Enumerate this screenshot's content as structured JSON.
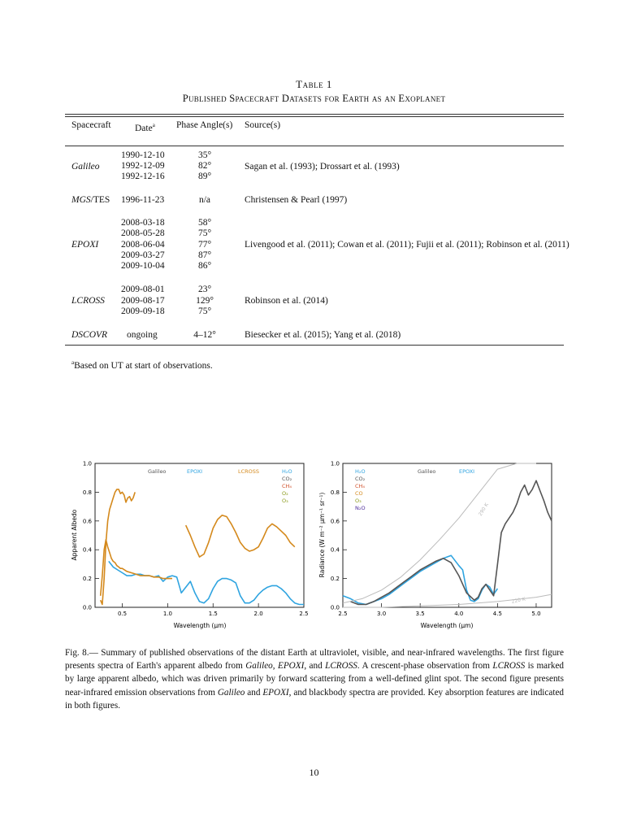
{
  "table": {
    "title": "Table 1",
    "subtitle": "Published Spacecraft Datasets for Earth as an Exoplanet",
    "headers": {
      "spacecraft": "Spacecraft",
      "date": "Date",
      "date_sup": "a",
      "phase": "Phase Angle(s)",
      "source": "Source(s)"
    },
    "groups": [
      {
        "spacecraft": "Galileo",
        "spacecraft_suffix": "",
        "dates": [
          "1990-12-10",
          "1992-12-09",
          "1992-12-16"
        ],
        "phases": [
          "35°",
          "82°",
          "89°"
        ],
        "source": "Sagan et al. (1993); Drossart et al. (1993)"
      },
      {
        "spacecraft": "MGS",
        "spacecraft_suffix": "/TES",
        "dates": [
          "1996-11-23"
        ],
        "phases": [
          "n/a"
        ],
        "source": "Christensen & Pearl (1997)"
      },
      {
        "spacecraft": "EPOXI",
        "spacecraft_suffix": "",
        "dates": [
          "2008-03-18",
          "2008-05-28",
          "2008-06-04",
          "2009-03-27",
          "2009-10-04"
        ],
        "phases": [
          "58°",
          "75°",
          "77°",
          "87°",
          "86°"
        ],
        "source": "Livengood et al. (2011); Cowan et al. (2011); Fujii et al. (2011); Robinson et al. (2011)"
      },
      {
        "spacecraft": "LCROSS",
        "spacecraft_suffix": "",
        "dates": [
          "2009-08-01",
          "2009-08-17",
          "2009-09-18"
        ],
        "phases": [
          "23°",
          "129°",
          "75°"
        ],
        "source": "Robinson et al. (2014)"
      },
      {
        "spacecraft": "DSCOVR",
        "spacecraft_suffix": "",
        "dates": [
          "ongoing"
        ],
        "phases": [
          "4–12°"
        ],
        "source": "Biesecker et al. (2015); Yang et al. (2018)"
      }
    ],
    "footnote_mark": "a",
    "footnote": "Based on UT at start of observations."
  },
  "figure": {
    "caption_label": "Fig. 8.—",
    "caption_parts": [
      " Summary of published observations of the distant Earth at ultraviolet, visible, and near-infrared wavelengths. The first figure presents spectra of Earth's apparent albedo from ",
      "Galileo",
      ", ",
      "EPOXI",
      ", and ",
      "LCROSS",
      ". A crescent-phase observation from ",
      "LCROSS",
      " is marked by large apparent albedo, which was driven primarily by forward scattering from a well-defined glint spot. The second figure presents near-infrared emission observations from ",
      "Galileo",
      " and ",
      "EPOXI",
      ", and blackbody spectra are provided. Key absorption features are indicated in both figures."
    ]
  },
  "page_number": "10",
  "chart_data": [
    {
      "type": "line",
      "xlabel": "Wavelength (µm)",
      "ylabel": "Apparent Albedo",
      "xlim": [
        0.2,
        2.5
      ],
      "ylim": [
        0.0,
        1.0
      ],
      "xticks": [
        "0.5",
        "1.0",
        "1.5",
        "2.0",
        "2.5"
      ],
      "yticks": [
        "0.0",
        "0.2",
        "0.4",
        "0.6",
        "0.8",
        "1.0"
      ],
      "grid": false,
      "legend": [
        {
          "name": "Galileo",
          "color": "#555555"
        },
        {
          "name": "EPOXI",
          "color": "#2fa4e0"
        },
        {
          "name": "LCROSS",
          "color": "#d4891c"
        }
      ],
      "absorber_labels": [
        {
          "text": "H₂O",
          "color": "#2fa4e0"
        },
        {
          "text": "CO₂",
          "color": "#555555"
        },
        {
          "text": "CH₄",
          "color": "#d0502a"
        },
        {
          "text": "O₂",
          "color": "#8a9a1a"
        },
        {
          "text": "O₃",
          "color": "#8a9a1a"
        }
      ],
      "series": [
        {
          "name": "EPOXI",
          "color": "#2fa4e0",
          "x": [
            0.35,
            0.4,
            0.45,
            0.5,
            0.55,
            0.6,
            0.65,
            0.7,
            0.75,
            0.8,
            0.85,
            0.9,
            0.95,
            1.0,
            1.05,
            1.1,
            1.15,
            1.2,
            1.25,
            1.3,
            1.35,
            1.4,
            1.45,
            1.5,
            1.55,
            1.6,
            1.65,
            1.7,
            1.75,
            1.8,
            1.85,
            1.9,
            1.95,
            2.0,
            2.05,
            2.1,
            2.15,
            2.2,
            2.25,
            2.3,
            2.35,
            2.4,
            2.45,
            2.5
          ],
          "y": [
            0.32,
            0.28,
            0.26,
            0.24,
            0.22,
            0.22,
            0.23,
            0.23,
            0.22,
            0.22,
            0.21,
            0.22,
            0.18,
            0.21,
            0.22,
            0.21,
            0.1,
            0.14,
            0.18,
            0.1,
            0.04,
            0.03,
            0.06,
            0.13,
            0.18,
            0.2,
            0.2,
            0.19,
            0.17,
            0.08,
            0.03,
            0.03,
            0.05,
            0.09,
            0.12,
            0.14,
            0.15,
            0.15,
            0.13,
            0.1,
            0.06,
            0.03,
            0.02,
            0.02
          ]
        },
        {
          "name": "LCROSS",
          "color": "#d4891c",
          "x": [
            1.2,
            1.25,
            1.3,
            1.35,
            1.4,
            1.45,
            1.5,
            1.55,
            1.6,
            1.65,
            1.7,
            1.75,
            1.8,
            1.85,
            1.9,
            1.95,
            2.0,
            2.05,
            2.1,
            2.15,
            2.2,
            2.25,
            2.3,
            2.35,
            2.4
          ],
          "y": [
            0.57,
            0.5,
            0.42,
            0.35,
            0.37,
            0.45,
            0.55,
            0.61,
            0.64,
            0.63,
            0.58,
            0.52,
            0.45,
            0.41,
            0.39,
            0.4,
            0.42,
            0.48,
            0.55,
            0.58,
            0.56,
            0.53,
            0.5,
            0.45,
            0.42
          ]
        },
        {
          "name": "LCROSS (visible)",
          "color": "#d4891c",
          "x": [
            0.26,
            0.28,
            0.3,
            0.32,
            0.34,
            0.36,
            0.38,
            0.4,
            0.42,
            0.44,
            0.46,
            0.48,
            0.5,
            0.52,
            0.54,
            0.56,
            0.58,
            0.6,
            0.62,
            0.64
          ],
          "y": [
            0.05,
            0.02,
            0.2,
            0.45,
            0.6,
            0.68,
            0.72,
            0.76,
            0.8,
            0.82,
            0.82,
            0.79,
            0.8,
            0.78,
            0.73,
            0.76,
            0.77,
            0.74,
            0.76,
            0.8
          ]
        },
        {
          "name": "LCROSS (UV–visible, low)",
          "color": "#d4891c",
          "x": [
            0.26,
            0.28,
            0.3,
            0.32,
            0.34,
            0.36,
            0.38,
            0.4,
            0.42,
            0.44,
            0.46,
            0.48,
            0.5,
            0.55,
            0.6,
            0.65,
            0.7,
            0.75,
            0.8,
            0.85,
            0.9,
            0.95,
            1.0,
            1.05
          ],
          "y": [
            0.08,
            0.22,
            0.4,
            0.47,
            0.42,
            0.38,
            0.34,
            0.32,
            0.31,
            0.29,
            0.28,
            0.27,
            0.27,
            0.25,
            0.24,
            0.23,
            0.22,
            0.22,
            0.22,
            0.21,
            0.21,
            0.2,
            0.2,
            0.2
          ]
        }
      ]
    },
    {
      "type": "line",
      "xlabel": "Wavelength (µm)",
      "ylabel": "Radiance (W m⁻² µm⁻¹ sr⁻¹)",
      "xlim": [
        2.5,
        5.2
      ],
      "ylim": [
        0.0,
        1.0
      ],
      "xticks": [
        "2.5",
        "3.0",
        "3.5",
        "4.0",
        "4.5",
        "5.0"
      ],
      "yticks": [
        "0.0",
        "0.2",
        "0.4",
        "0.6",
        "0.8",
        "1.0"
      ],
      "grid": false,
      "legend": [
        {
          "name": "Galileo",
          "color": "#555555"
        },
        {
          "name": "EPOXI",
          "color": "#2fa4e0"
        }
      ],
      "absorber_labels": [
        {
          "text": "H₂O",
          "color": "#2fa4e0"
        },
        {
          "text": "CO₂",
          "color": "#555555"
        },
        {
          "text": "CH₄",
          "color": "#d0502a"
        },
        {
          "text": "CO",
          "color": "#d4891c"
        },
        {
          "text": "O₃",
          "color": "#8a9a1a"
        },
        {
          "text": "N₂O",
          "color": "#4b2a9a"
        }
      ],
      "blackbody_labels": [
        "290 K",
        "220 K"
      ],
      "series": [
        {
          "name": "EPOXI",
          "color": "#2fa4e0",
          "x": [
            2.5,
            2.6,
            2.7,
            2.8,
            2.9,
            3.0,
            3.1,
            3.2,
            3.3,
            3.4,
            3.5,
            3.6,
            3.7,
            3.8,
            3.9,
            4.0,
            4.05,
            4.1,
            4.15,
            4.2,
            4.25,
            4.3,
            4.35,
            4.4,
            4.45,
            4.5
          ],
          "y": [
            0.08,
            0.06,
            0.03,
            0.02,
            0.04,
            0.06,
            0.09,
            0.13,
            0.17,
            0.21,
            0.25,
            0.28,
            0.31,
            0.34,
            0.36,
            0.29,
            0.26,
            0.12,
            0.05,
            0.04,
            0.06,
            0.12,
            0.16,
            0.14,
            0.09,
            0.13
          ]
        },
        {
          "name": "Galileo",
          "color": "#555555",
          "x": [
            2.6,
            2.7,
            2.8,
            2.9,
            3.0,
            3.1,
            3.2,
            3.3,
            3.4,
            3.5,
            3.6,
            3.7,
            3.8,
            3.9,
            4.0,
            4.1,
            4.2,
            4.25,
            4.3,
            4.35,
            4.4,
            4.45,
            4.5,
            4.55,
            4.6,
            4.65,
            4.7,
            4.75,
            4.8,
            4.85,
            4.9,
            4.95,
            5.0,
            5.05,
            5.1,
            5.15,
            5.2
          ],
          "y": [
            0.04,
            0.02,
            0.02,
            0.04,
            0.07,
            0.1,
            0.14,
            0.18,
            0.22,
            0.26,
            0.29,
            0.32,
            0.34,
            0.31,
            0.22,
            0.1,
            0.05,
            0.07,
            0.13,
            0.16,
            0.12,
            0.08,
            0.3,
            0.52,
            0.58,
            0.62,
            0.66,
            0.72,
            0.8,
            0.85,
            0.78,
            0.82,
            0.88,
            0.81,
            0.74,
            0.66,
            0.6
          ]
        },
        {
          "name": "Blackbody 290 K",
          "color": "#bbbbbb",
          "x": [
            2.5,
            2.75,
            3.0,
            3.25,
            3.5,
            3.75,
            4.0,
            4.25,
            4.5,
            4.75,
            5.0
          ],
          "y": [
            0.03,
            0.06,
            0.12,
            0.21,
            0.33,
            0.47,
            0.62,
            0.79,
            0.96,
            1.1,
            1.25
          ]
        },
        {
          "name": "Blackbody 220 K",
          "color": "#bbbbbb",
          "x": [
            2.5,
            3.0,
            3.5,
            4.0,
            4.5,
            5.0,
            5.2
          ],
          "y": [
            0.0,
            0.0,
            0.01,
            0.02,
            0.04,
            0.07,
            0.09
          ]
        }
      ]
    }
  ]
}
